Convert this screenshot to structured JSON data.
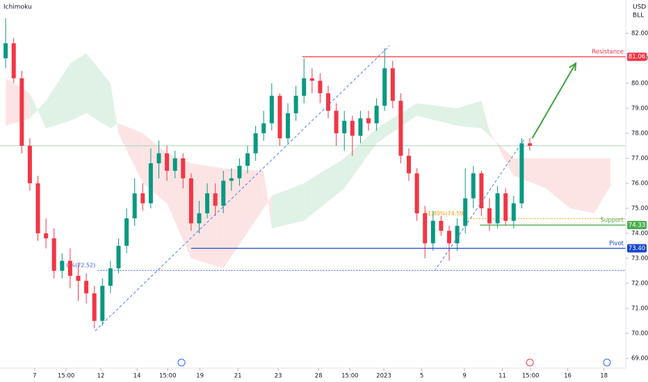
{
  "chart_data": {
    "type": "candlestick",
    "indicator": "Ichimoku",
    "currency": "USD",
    "unit": "BLL",
    "up_color": "#089981",
    "down_color": "#f23645",
    "open": [
      81.0,
      81.6,
      80.2,
      77.5,
      76.0,
      74.0,
      73.8,
      72.5,
      72.9,
      72.3,
      72.1,
      71.6,
      70.5,
      71.9,
      72.6,
      73.5,
      74.6,
      75.6,
      75.2,
      76.8,
      77.2,
      76.5,
      77.0,
      76.2,
      74.4,
      74.8,
      75.6,
      75.1,
      76.1,
      76.2,
      76.7,
      77.2,
      78.0,
      78.4,
      79.5,
      77.8,
      78.8,
      79.5,
      80.2,
      80.1,
      79.6,
      78.9,
      78.0,
      78.5,
      77.9,
      78.6,
      78.4,
      79.1,
      80.6,
      79.3,
      77.1,
      76.4,
      74.8,
      73.6,
      74.5,
      74.1,
      73.6,
      74.3,
      75.4,
      76.4,
      75.0,
      74.4,
      75.6,
      74.5,
      75.2,
      77.6
    ],
    "close": [
      81.6,
      80.2,
      77.5,
      76.0,
      74.0,
      73.8,
      72.5,
      72.9,
      72.3,
      72.1,
      71.6,
      70.5,
      71.9,
      72.6,
      73.5,
      74.6,
      75.6,
      75.2,
      76.8,
      77.2,
      76.5,
      77.0,
      76.2,
      74.4,
      74.8,
      75.6,
      75.1,
      76.1,
      76.2,
      76.7,
      77.2,
      78.0,
      78.4,
      79.5,
      77.8,
      78.8,
      79.5,
      80.2,
      80.1,
      79.6,
      78.9,
      78.0,
      78.5,
      77.9,
      78.6,
      78.4,
      79.1,
      80.6,
      79.3,
      77.1,
      76.4,
      74.8,
      73.6,
      74.5,
      74.1,
      73.6,
      74.3,
      75.4,
      76.4,
      75.0,
      74.4,
      75.6,
      74.5,
      75.2,
      77.6,
      77.5
    ],
    "high": [
      82.6,
      81.8,
      80.5,
      77.8,
      76.3,
      74.6,
      74.2,
      73.2,
      73.4,
      72.8,
      72.4,
      71.9,
      72.2,
      72.9,
      73.8,
      75.0,
      76.2,
      76.0,
      77.4,
      77.7,
      77.5,
      77.3,
      77.2,
      76.4,
      75.3,
      76.0,
      76.0,
      76.5,
      76.6,
      77.0,
      77.5,
      78.3,
      78.9,
      80.0,
      79.6,
      79.2,
      79.9,
      81.0,
      80.6,
      80.4,
      79.9,
      79.2,
      78.9,
      78.7,
      78.9,
      78.9,
      79.4,
      81.4,
      80.9,
      79.6,
      77.4,
      76.6,
      75.1,
      74.9,
      74.7,
      74.3,
      74.6,
      76.6,
      76.7,
      76.5,
      75.4,
      75.9,
      75.8,
      75.5,
      77.8,
      77.8
    ],
    "low": [
      80.6,
      80.0,
      77.2,
      75.7,
      73.7,
      73.4,
      72.2,
      72.2,
      71.8,
      71.3,
      71.2,
      70.2,
      70.3,
      71.6,
      72.4,
      73.2,
      74.3,
      74.9,
      75.0,
      76.2,
      76.1,
      76.2,
      75.8,
      74.1,
      74.0,
      74.6,
      74.7,
      74.8,
      75.7,
      75.9,
      76.4,
      76.9,
      77.7,
      78.1,
      77.5,
      77.6,
      78.5,
      79.2,
      79.6,
      79.2,
      78.6,
      77.5,
      77.3,
      77.1,
      77.6,
      78.1,
      78.1,
      78.9,
      79.0,
      76.8,
      76.1,
      74.5,
      73.0,
      73.3,
      73.9,
      72.9,
      73.3,
      74.0,
      75.0,
      74.7,
      74.1,
      74.2,
      74.3,
      74.2,
      75.0,
      77.3
    ],
    "cloud_x": [
      0,
      3,
      5,
      8,
      10,
      13,
      14,
      17,
      20,
      23,
      27,
      32,
      33,
      37,
      42,
      46,
      51,
      56,
      59,
      60,
      63,
      67,
      70,
      73,
      75
    ],
    "cloud_span_a": [
      78.3,
      78.6,
      79.3,
      80.8,
      81.2,
      80.0,
      78.0,
      76.0,
      75.2,
      73.0,
      72.6,
      75.0,
      75.5,
      76.0,
      77.0,
      78.2,
      79.2,
      79.0,
      79.3,
      78.1,
      76.3,
      75.8,
      75.0,
      74.8,
      75.9
    ],
    "cloud_span_b": [
      80.2,
      79.6,
      78.2,
      78.5,
      78.8,
      78.2,
      78.4,
      78.0,
      77.2,
      76.8,
      76.6,
      76.5,
      74.2,
      74.5,
      75.8,
      77.6,
      78.7,
      78.3,
      78.2,
      77.9,
      77.0,
      77.0,
      77.0,
      77.0,
      77.0
    ],
    "cloud_up_color": "#e0f2e6",
    "cloud_down_color": "#fde4e4",
    "last_price": 77.5,
    "levels": [
      {
        "name": "Resistance",
        "value": 81.06,
        "from": 36.8,
        "color": "#f23645"
      },
      {
        "name": "Support",
        "value": 74.33,
        "from": 58.8,
        "color": "#4caf50"
      },
      {
        "name": "Pivot",
        "value": 73.4,
        "value_label": "73.40",
        "from": 23.0,
        "color": "#1848cc"
      }
    ],
    "fib_levels": [
      {
        "text": "0%(72.52)",
        "value": 72.52,
        "from": 11.4,
        "color": "#2962ff"
      },
      {
        "text": "61.80%(74.59)",
        "value": 74.59,
        "from": 57.3,
        "color": "#ff9800"
      }
    ],
    "trendlines": [
      {
        "x": [
          11.1,
          47.6
        ],
        "y": [
          70.1,
          81.5
        ],
        "color": "#4f7de8"
      },
      {
        "x": [
          53.2,
          64.4
        ],
        "y": [
          72.5,
          77.8
        ],
        "color": "#4f7de8"
      }
    ],
    "arrow": {
      "x": [
        65.3,
        70.7
      ],
      "y": [
        77.8,
        80.8
      ],
      "color": "#3da23d"
    },
    "xlim": [
      -0.7,
      76.9
    ],
    "ylim": [
      68.61,
      83.33
    ],
    "xticks": [
      {
        "value": 3.6,
        "label": "7"
      },
      {
        "value": 7.5,
        "label": "15:00"
      },
      {
        "value": 11.8,
        "label": "12"
      },
      {
        "value": 16.3,
        "label": "14"
      },
      {
        "value": 20.1,
        "label": "15:00"
      },
      {
        "value": 24.1,
        "label": "19"
      },
      {
        "value": 28.8,
        "label": "21"
      },
      {
        "value": 33.8,
        "label": "23"
      },
      {
        "value": 38.8,
        "label": "28"
      },
      {
        "value": 42.7,
        "label": "15:00"
      },
      {
        "value": 46.9,
        "label": "2023"
      },
      {
        "value": 51.6,
        "label": "5"
      },
      {
        "value": 56.9,
        "label": "9"
      },
      {
        "value": 61.6,
        "label": "11"
      },
      {
        "value": 65.1,
        "label": "15:00"
      },
      {
        "value": 69.7,
        "label": "16"
      },
      {
        "value": 74.2,
        "label": "18"
      }
    ],
    "yticks": [
      {
        "value": 69,
        "label": "69.00"
      },
      {
        "value": 70,
        "label": "70.00"
      },
      {
        "value": 71,
        "label": "71.00"
      },
      {
        "value": 72,
        "label": "72.00"
      },
      {
        "value": 73,
        "label": "73.00"
      },
      {
        "value": 74,
        "label": "74.00"
      },
      {
        "value": 75,
        "label": "75.00"
      },
      {
        "value": 76,
        "label": "76.00"
      },
      {
        "value": 77,
        "label": "77.00"
      },
      {
        "value": 78,
        "label": "78.00"
      },
      {
        "value": 79,
        "label": "79.00"
      },
      {
        "value": 80,
        "label": "80.00"
      },
      {
        "value": 81,
        "label": "81.00"
      },
      {
        "value": 82,
        "label": "82.00"
      }
    ]
  }
}
